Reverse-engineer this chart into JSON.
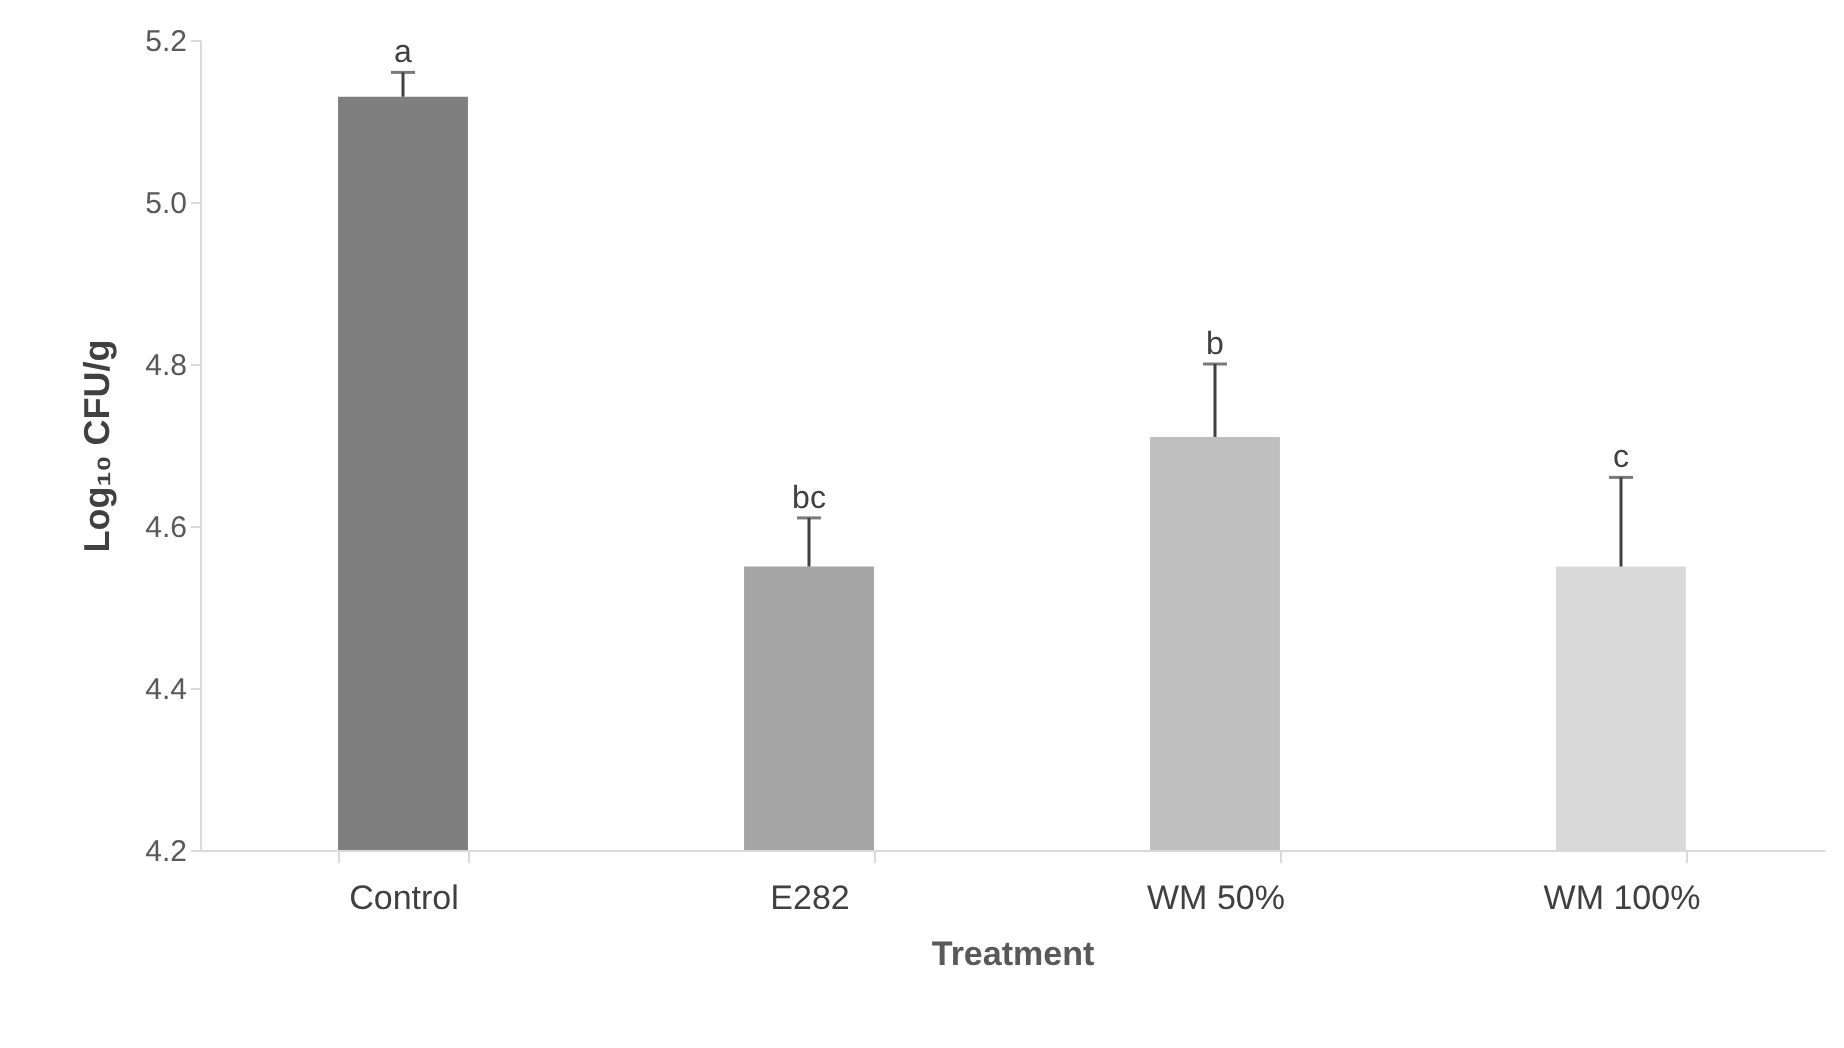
{
  "chart_data": {
    "type": "bar",
    "xlabel": "Treatment",
    "ylabel": "Log₁₀ CFU/g",
    "categories": [
      "Control",
      "E282",
      "WM 50%",
      "WM 100%"
    ],
    "values": [
      5.13,
      4.55,
      4.71,
      4.55
    ],
    "colors": [
      "#7f7f7f",
      "#a5a5a5",
      "#bfbfbf",
      "#d9d9d9"
    ],
    "errors": [
      [
        5.13,
        5.16
      ],
      [
        4.55,
        4.61
      ],
      [
        4.71,
        4.8
      ],
      [
        4.55,
        4.66
      ]
    ],
    "ylim": [
      4.2,
      5.2
    ],
    "yticks": [
      {
        "value": 4.2,
        "label": "4.2"
      },
      {
        "value": 4.4,
        "label": "4.4"
      },
      {
        "value": 4.6,
        "label": "4.6"
      },
      {
        "value": 4.8,
        "label": "4.8"
      },
      {
        "value": 5.0,
        "label": "5.0"
      },
      {
        "value": 5.2,
        "label": "5.2"
      }
    ],
    "annotations": [
      {
        "text": "a",
        "x": "Control",
        "y": 5.16
      },
      {
        "text": "bc",
        "x": "E282",
        "y": 4.61
      },
      {
        "text": "b",
        "x": "WM 50%",
        "y": 4.8
      },
      {
        "text": "c",
        "x": "WM 100%",
        "y": 4.66
      }
    ]
  }
}
